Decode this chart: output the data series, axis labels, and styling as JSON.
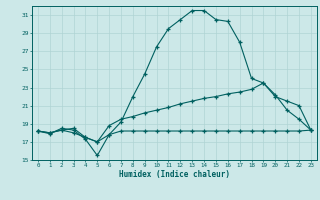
{
  "xlabel": "Humidex (Indice chaleur)",
  "bg_color": "#cce8e8",
  "grid_color": "#b0d4d4",
  "line_color": "#006060",
  "xlim": [
    -0.5,
    23.5
  ],
  "ylim": [
    15,
    32
  ],
  "xticks": [
    0,
    1,
    2,
    3,
    4,
    5,
    6,
    7,
    8,
    9,
    10,
    11,
    12,
    13,
    14,
    15,
    16,
    17,
    18,
    19,
    20,
    21,
    22,
    23
  ],
  "yticks": [
    15,
    17,
    19,
    21,
    23,
    25,
    27,
    29,
    31
  ],
  "line1_x": [
    0,
    1,
    2,
    3,
    4,
    5,
    6,
    7,
    8,
    9,
    10,
    11,
    12,
    13,
    14,
    15,
    16,
    17,
    18,
    19,
    20,
    21,
    22,
    23
  ],
  "line1_y": [
    18.2,
    17.9,
    18.5,
    18.3,
    17.3,
    15.5,
    17.8,
    19.2,
    22.0,
    24.5,
    27.5,
    29.5,
    30.5,
    31.5,
    31.5,
    30.5,
    30.3,
    28.0,
    24.0,
    23.5,
    22.2,
    20.5,
    19.5,
    18.3
  ],
  "line2_x": [
    0,
    1,
    2,
    3,
    4,
    5,
    6,
    7,
    8,
    9,
    10,
    11,
    12,
    13,
    14,
    15,
    16,
    17,
    18,
    19,
    20,
    21,
    22,
    23
  ],
  "line2_y": [
    18.2,
    18.0,
    18.3,
    18.5,
    17.5,
    17.0,
    18.8,
    19.5,
    19.8,
    20.2,
    20.5,
    20.8,
    21.2,
    21.5,
    21.8,
    22.0,
    22.3,
    22.5,
    22.8,
    23.5,
    22.0,
    21.5,
    21.0,
    18.3
  ],
  "line3_x": [
    0,
    1,
    2,
    3,
    4,
    5,
    6,
    7,
    8,
    9,
    10,
    11,
    12,
    13,
    14,
    15,
    16,
    17,
    18,
    19,
    20,
    21,
    22,
    23
  ],
  "line3_y": [
    18.2,
    18.0,
    18.3,
    18.0,
    17.5,
    17.0,
    17.8,
    18.2,
    18.2,
    18.2,
    18.2,
    18.2,
    18.2,
    18.2,
    18.2,
    18.2,
    18.2,
    18.2,
    18.2,
    18.2,
    18.2,
    18.2,
    18.2,
    18.3
  ]
}
